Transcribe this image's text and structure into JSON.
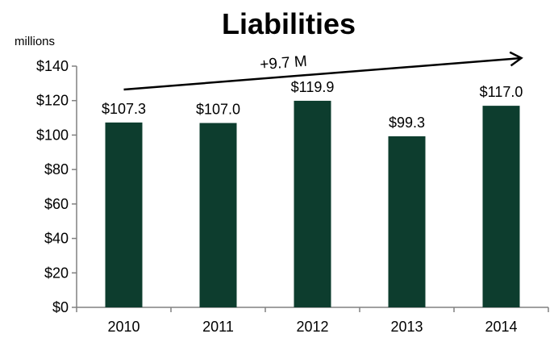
{
  "chart_data": {
    "type": "bar",
    "title": "Liabilities",
    "y_unit": "millions",
    "categories": [
      "2010",
      "2011",
      "2012",
      "2013",
      "2014"
    ],
    "values": [
      107.3,
      107.0,
      119.9,
      99.3,
      117.0
    ],
    "data_labels": [
      "$107.3",
      "$107.0",
      "$119.9",
      "$99.3",
      "$117.0"
    ],
    "ylim": [
      0,
      140
    ],
    "y_ticks": [
      0,
      20,
      40,
      60,
      80,
      100,
      120,
      140
    ],
    "y_tick_labels": [
      "$0",
      "$20",
      "$40",
      "$60",
      "$80",
      "$100",
      "$120",
      "$140"
    ],
    "grid": false,
    "legend": "none",
    "bar_color": "#0d3d2e",
    "annotation": {
      "text": "+9.7 M",
      "from_category": "2010",
      "to_category": "2014"
    }
  }
}
